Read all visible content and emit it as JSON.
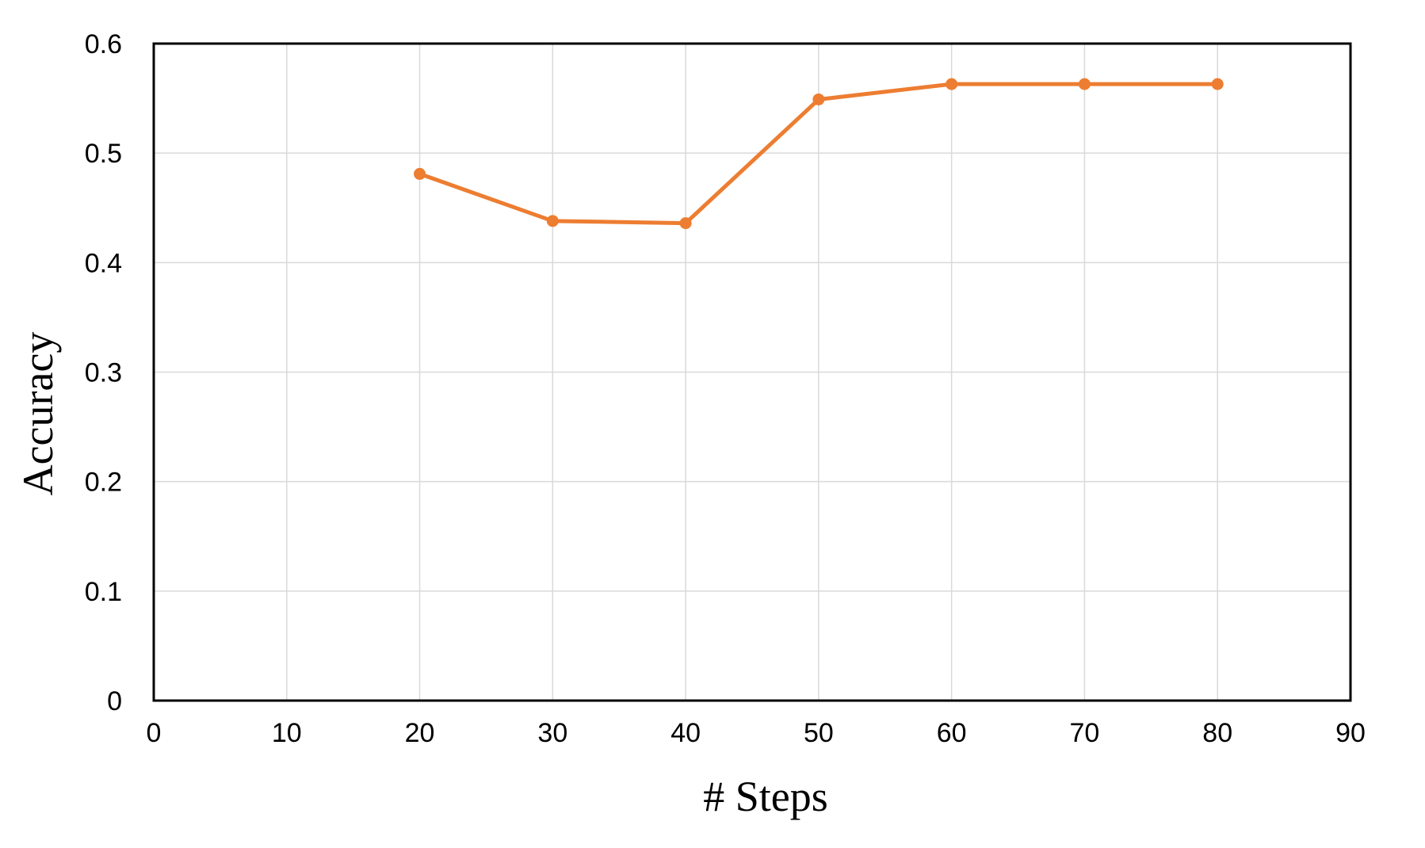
{
  "chart_data": {
    "type": "line",
    "title": "",
    "xlabel": "# Steps",
    "ylabel": "Accuracy",
    "xlim": [
      0,
      90
    ],
    "ylim": [
      0,
      0.6
    ],
    "x_ticks": [
      "0",
      "10",
      "20",
      "30",
      "40",
      "50",
      "60",
      "70",
      "80",
      "90"
    ],
    "y_ticks": [
      "0",
      "0.1",
      "0.2",
      "0.3",
      "0.4",
      "0.5",
      "0.6"
    ],
    "grid": true,
    "legend": "none",
    "series": [
      {
        "color": "#ed7d31",
        "x": [
          20,
          30,
          40,
          50,
          60,
          70,
          80
        ],
        "y": [
          0.481,
          0.438,
          0.436,
          0.549,
          0.563,
          0.563,
          0.563
        ]
      }
    ]
  }
}
